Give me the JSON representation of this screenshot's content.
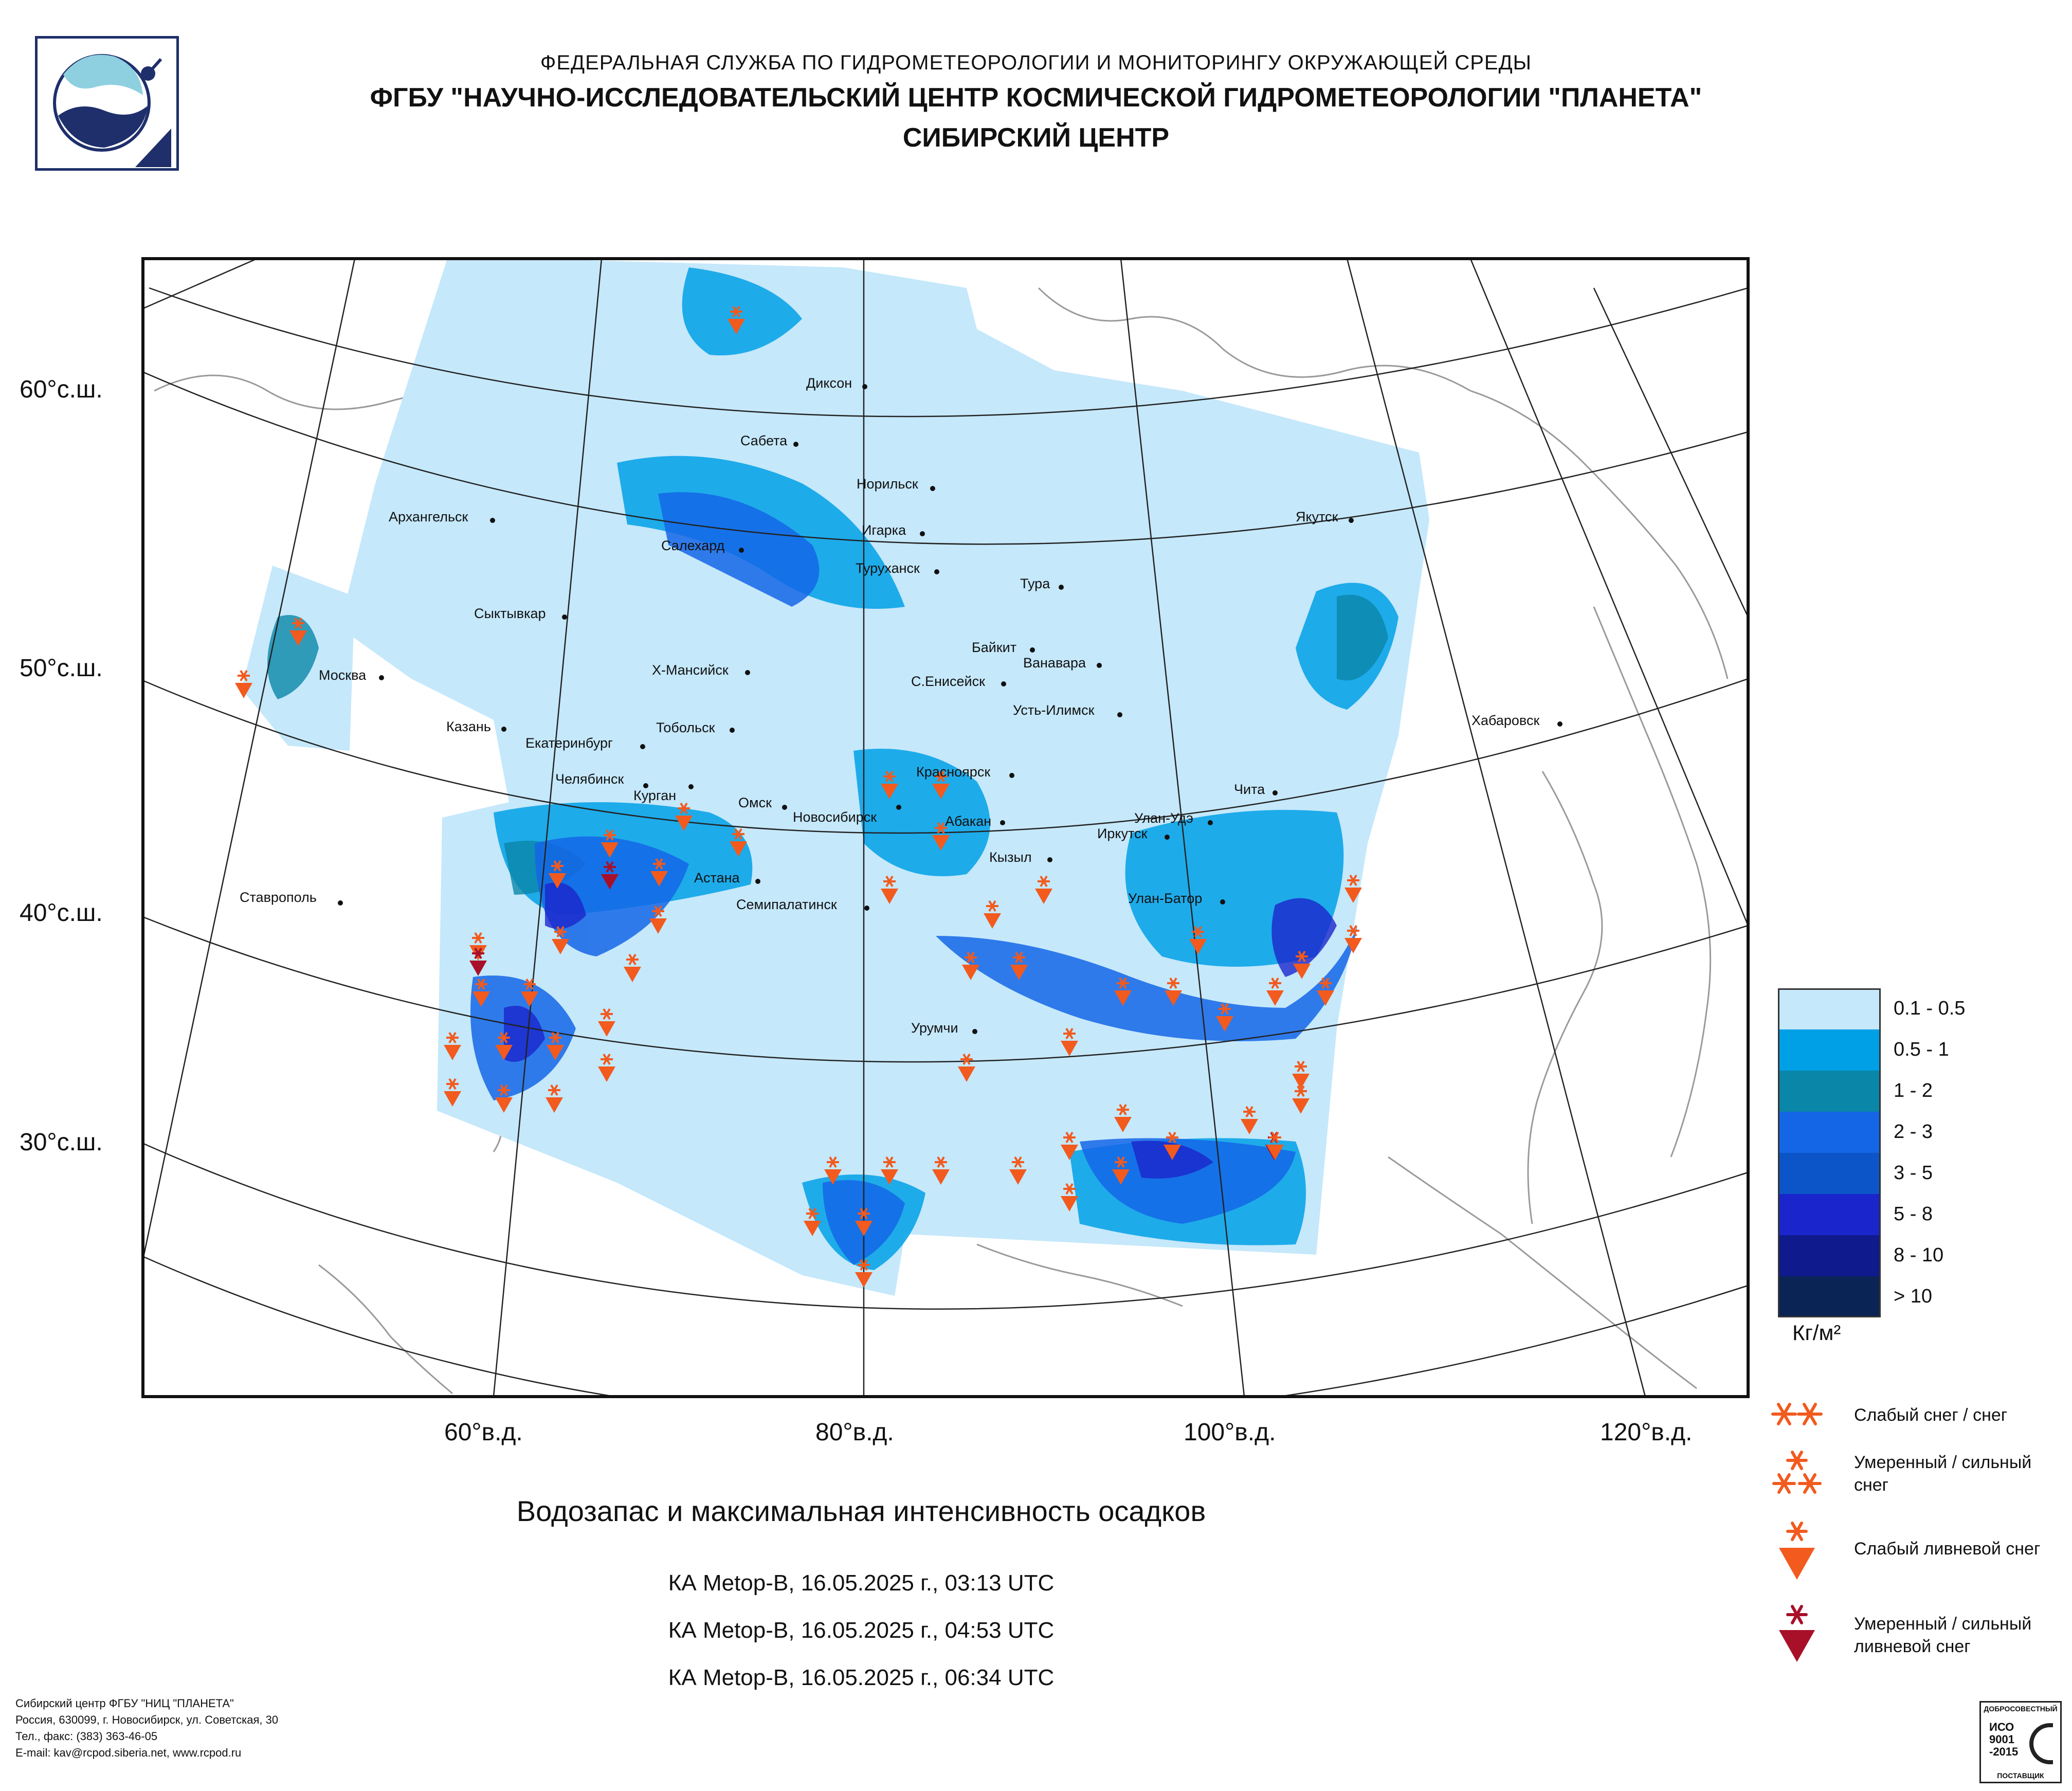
{
  "header": {
    "agency": "ФЕДЕРАЛЬНАЯ СЛУЖБА ПО ГИДРОМЕТЕОРОЛОГИИ И МОНИТОРИНГУ ОКРУЖАЮЩЕЙ СРЕДЫ",
    "institute": "ФГБУ \"НАУЧНО-ИССЛЕДОВАТЕЛЬСКИЙ ЦЕНТР КОСМИЧЕСКОЙ ГИДРОМЕТЕОРОЛОГИИ \"ПЛАНЕТА\"",
    "center": "СИБИРСКИЙ ЦЕНТР"
  },
  "map": {
    "lat_labels": [
      "60°с.ш.",
      "50°с.ш.",
      "40°с.ш.",
      "30°с.ш."
    ],
    "lon_labels": [
      "60°в.д.",
      "80°в.д.",
      "100°в.д.",
      "120°в.д."
    ],
    "cities": [
      "Диксон",
      "Сабета",
      "Норильск",
      "Игарка",
      "Туруханск",
      "Салехард",
      "Архангельск",
      "Якутск",
      "Тура",
      "Байкит",
      "Ванавара",
      "Сыктывкар",
      "Х-Мансийск",
      "С.Енисейск",
      "Москва",
      "Усть-Илимск",
      "Хабаровск",
      "Казань",
      "Екатеринбург",
      "Тобольск",
      "Челябинск",
      "Курган",
      "Омск",
      "Новосибирск",
      "Красноярск",
      "Чита",
      "Абакан",
      "Улан-Удэ",
      "Иркутск",
      "Кызыл",
      "Астана",
      "Семипалатинск",
      "Улан-Батор",
      "Ставрополь",
      "Урумчи"
    ]
  },
  "legend": {
    "classes": [
      {
        "label": "0.1 - 0.5",
        "color": "#c5e8fb"
      },
      {
        "label": "0.5 - 1",
        "color": "#00a0e6"
      },
      {
        "label": "1 - 2",
        "color": "#0a86a9"
      },
      {
        "label": "2 - 3",
        "color": "#1466e6"
      },
      {
        "label": "3 - 5",
        "color": "#0b55c8"
      },
      {
        "label": "5 - 8",
        "color": "#1a25cc"
      },
      {
        "label": "8 - 10",
        "color": "#0f1a8c"
      },
      {
        "label": "> 10",
        "color": "#0a2456"
      }
    ],
    "units": "Кг/м²",
    "symbols": [
      {
        "label": "Слабый снег / снег",
        "color": "#f25a1e",
        "icon": "double-snowflake-icon"
      },
      {
        "label": "Умеренный / сильный\nснег",
        "color": "#f25a1e",
        "icon": "triple-snowflake-icon"
      },
      {
        "label": "Слабый ливневой снег",
        "color": "#f25a1e",
        "icon": "snow-shower-light-icon"
      },
      {
        "label": "Умеренный / сильный\nливневой снег",
        "color": "#a8102a",
        "icon": "snow-shower-heavy-icon"
      }
    ]
  },
  "caption": "Водозапас и максимальная интенсивность осадков",
  "passes": [
    "КА Metop-B, 16.05.2025 г., 03:13 UTC",
    "КА Metop-B, 16.05.2025 г., 04:53 UTC",
    "КА Metop-B, 16.05.2025 г., 06:34 UTC"
  ],
  "footer": [
    "Сибирский центр ФГБУ \"НИЦ \"ПЛАНЕТА\"",
    "Россия, 630099, г. Новосибирск, ул. Советская, 30",
    "Тел., факс: (383) 363-46-05",
    "E-mail: kav@rcpod.siberia.net, www.rcpod.ru"
  ],
  "iso_badge": {
    "top": "ДОБРОСОВЕСТНЫЙ",
    "line1": "ИСО",
    "line2": "9001",
    "line3": "-2015",
    "bottom": "ПОСТАВЩИК"
  }
}
